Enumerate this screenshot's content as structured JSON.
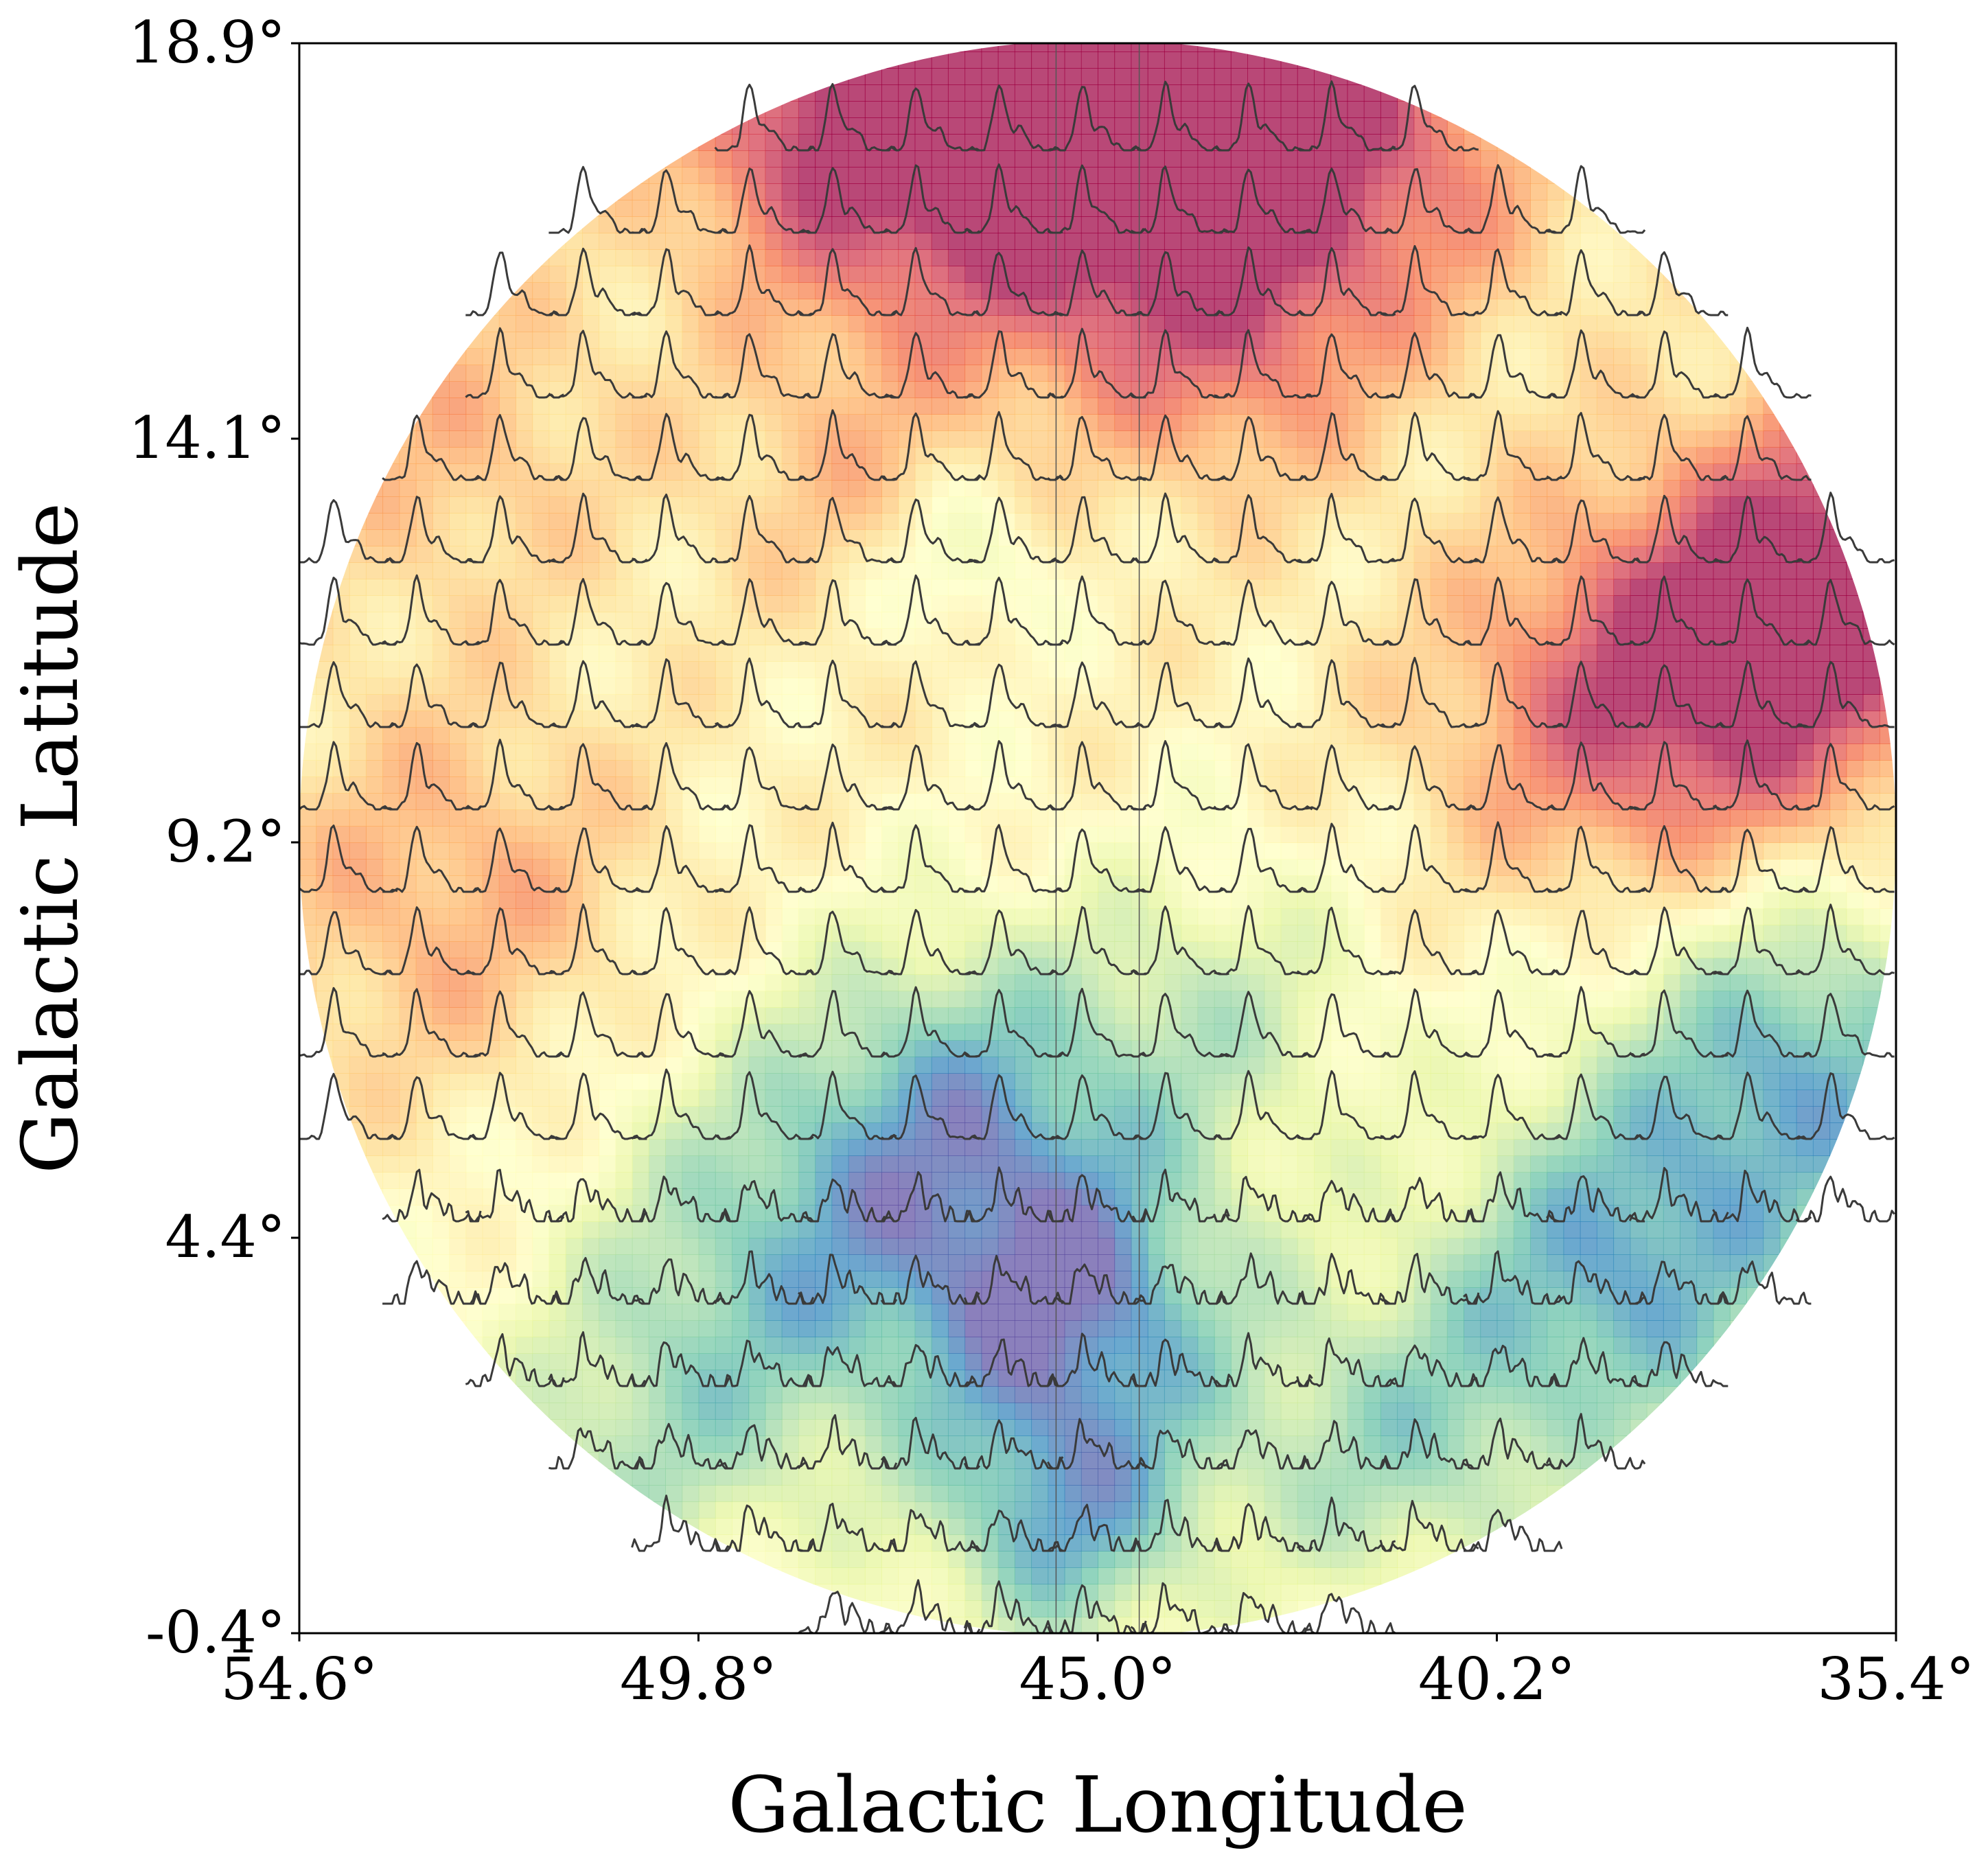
{
  "chart_data": {
    "type": "heatmap",
    "xlabel": "Galactic Longitude",
    "ylabel": "Galactic Latitude",
    "x_ticks": [
      "54.6°",
      "49.8°",
      "45.0°",
      "40.2°",
      "35.4°"
    ],
    "y_ticks": [
      "18.9°",
      "14.1°",
      "9.2°",
      "4.4°",
      "-0.4°"
    ],
    "xlim": [
      54.6,
      35.4
    ],
    "ylim": [
      -0.4,
      18.9
    ],
    "footprint": "circle",
    "footprint_center": [
      45.0,
      9.25
    ],
    "footprint_radius_deg": 9.6,
    "vertical_lines_x": [
      45.5,
      44.5
    ],
    "colormap": "Spectral_r",
    "colormap_stops": [
      "#5e4fa2",
      "#3288bd",
      "#66c2a5",
      "#abdda4",
      "#e6f598",
      "#ffffbf",
      "#fee08b",
      "#fdae61",
      "#f46d43",
      "#d53e4f",
      "#9e0142"
    ],
    "spectra_grid": {
      "x_min": 54.6,
      "x_step": 1.0,
      "columns": 20,
      "y_min": -0.4,
      "y_step": 1.0,
      "rows": 19,
      "line_color": "#3a3a3a"
    },
    "intensity_field": [
      {
        "l": 44.2,
        "b": 18.2,
        "amp": 1.6,
        "sigma": 1.8
      },
      {
        "l": 46.5,
        "b": 17.6,
        "amp": 1.1,
        "sigma": 1.8
      },
      {
        "l": 48.5,
        "b": 18.2,
        "amp": 0.8,
        "sigma": 1.4
      },
      {
        "l": 41.5,
        "b": 17.5,
        "amp": 0.7,
        "sigma": 1.5
      },
      {
        "l": 43.4,
        "b": 15.2,
        "amp": 0.6,
        "sigma": 1.3
      },
      {
        "l": 36.8,
        "b": 11.6,
        "amp": 1.3,
        "sigma": 1.6
      },
      {
        "l": 38.8,
        "b": 10.8,
        "amp": 0.8,
        "sigma": 1.6
      },
      {
        "l": 35.8,
        "b": 13.2,
        "amp": 0.7,
        "sigma": 1.2
      },
      {
        "l": 52.8,
        "b": 8.6,
        "amp": 0.55,
        "sigma": 1.7
      },
      {
        "l": 52.8,
        "b": 14.2,
        "amp": 0.45,
        "sigma": 1.5
      },
      {
        "l": 48.2,
        "b": 13.6,
        "amp": 0.35,
        "sigma": 1.2
      },
      {
        "l": 48.6,
        "b": 4.2,
        "amp": -1.0,
        "sigma": 1.8
      },
      {
        "l": 46.6,
        "b": 6.2,
        "amp": -0.9,
        "sigma": 1.5
      },
      {
        "l": 45.2,
        "b": 3.6,
        "amp": -1.3,
        "sigma": 1.4
      },
      {
        "l": 45.4,
        "b": 0.9,
        "amp": -1.1,
        "sigma": 1.2
      },
      {
        "l": 38.8,
        "b": 3.9,
        "amp": -1.2,
        "sigma": 1.6
      },
      {
        "l": 36.5,
        "b": 6.5,
        "amp": -1.2,
        "sigma": 1.6
      },
      {
        "l": 43.5,
        "b": 7.1,
        "amp": -0.6,
        "sigma": 1.4
      },
      {
        "l": 41.5,
        "b": 1.8,
        "amp": -0.8,
        "sigma": 1.4
      },
      {
        "l": 46.6,
        "b": 12.6,
        "amp": -0.45,
        "sigma": 0.7
      },
      {
        "l": 50.5,
        "b": 1.8,
        "amp": -0.6,
        "sigma": 1.4
      }
    ]
  }
}
